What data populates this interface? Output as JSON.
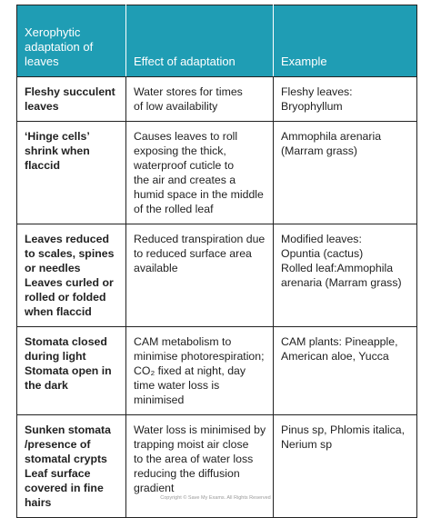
{
  "table": {
    "header": [
      [
        "Xerophytic",
        "adaptation of",
        "leaves"
      ],
      [
        "Effect of adaptation"
      ],
      [
        "Example"
      ]
    ],
    "rows": [
      [
        [
          "Fleshy succulent",
          "leaves"
        ],
        [
          "Water stores for times",
          "of low availability"
        ],
        [
          "Fleshy leaves:",
          "Bryophyllum"
        ]
      ],
      [
        [
          "‘Hinge cells’",
          "shrink when",
          "flaccid"
        ],
        [
          "Causes leaves to roll",
          "exposing the thick,",
          "waterproof cuticle to",
          "the air and creates a",
          "humid space in the middle",
          "of the rolled leaf"
        ],
        [
          "Ammophila arenaria",
          "(Marram grass)"
        ]
      ],
      [
        [
          "Leaves reduced",
          "to scales, spines",
          "or needles",
          "Leaves curled or",
          "rolled or folded",
          "when flaccid"
        ],
        [
          "Reduced transpiration due",
          "to reduced surface area",
          "available"
        ],
        [
          "Modified leaves:",
          "Opuntia (cactus)",
          "Rolled leaf:Ammophila",
          "arenaria (Marram grass)"
        ]
      ],
      [
        [
          "Stomata closed",
          "during light",
          "Stomata open in",
          "the dark"
        ],
        [
          "CAM metabolism to",
          "minimise photorespiration;",
          "CO₂ fixed at night, day",
          "time water loss is",
          "minimised"
        ],
        [
          "CAM plants: Pineapple,",
          "American aloe, Yucca"
        ]
      ],
      [
        [
          "Sunken stomata",
          "/presence of",
          "stomatal crypts",
          "Leaf surface",
          "covered in fine",
          "hairs"
        ],
        [
          "Water loss is minimised by",
          "trapping moist air close",
          "to the area of water loss",
          "reducing the diffusion",
          "gradient"
        ],
        [
          "Pinus sp, Phlomis italica,",
          "Nerium sp"
        ]
      ]
    ]
  },
  "footer": "Copyright © Save My Exams. All Rights Reserved"
}
